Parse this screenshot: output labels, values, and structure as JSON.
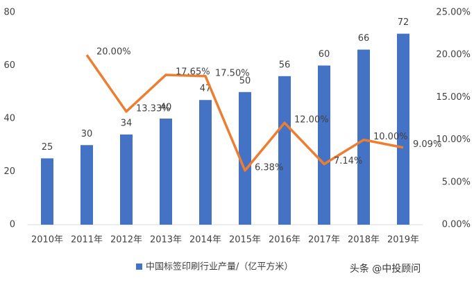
{
  "chart_data": {
    "type": "bar-line",
    "categories": [
      "2010年",
      "2011年",
      "2012年",
      "2013年",
      "2014年",
      "2015年",
      "2016年",
      "2017年",
      "2018年",
      "2019年"
    ],
    "series": [
      {
        "name": "中国标签印刷行业产量/（亿平方米）",
        "type": "bar",
        "color": "#4472c4",
        "values": [
          25,
          30,
          34,
          40,
          47,
          50,
          56,
          60,
          66,
          72
        ]
      },
      {
        "type": "line",
        "axis": "y2",
        "color": "#ed7d31",
        "values": [
          null,
          20,
          13.33,
          17.65,
          17.5,
          6.38,
          12,
          7.14,
          10,
          9.09
        ],
        "value_labels": [
          null,
          "20.00%",
          "13.33%",
          "17.65%",
          "17.50%",
          "6.38%",
          "12.00%",
          "7.14%",
          "10.00%",
          "9.09%"
        ]
      }
    ],
    "ylim": [
      0,
      80
    ],
    "yticks": [
      0,
      20,
      40,
      60,
      80
    ],
    "y2lim": [
      0,
      25
    ],
    "y2ticks": [
      {
        "value": 0,
        "label": "0.00%"
      },
      {
        "value": 5,
        "label": "5.00%"
      },
      {
        "value": 10,
        "label": "10.00%"
      },
      {
        "value": 15,
        "label": "15.00%"
      },
      {
        "value": 20,
        "label": "20.00%"
      },
      {
        "value": 25,
        "label": "25.00%"
      }
    ],
    "legend": "bottom",
    "watermark": "头条 @中投顾问"
  }
}
